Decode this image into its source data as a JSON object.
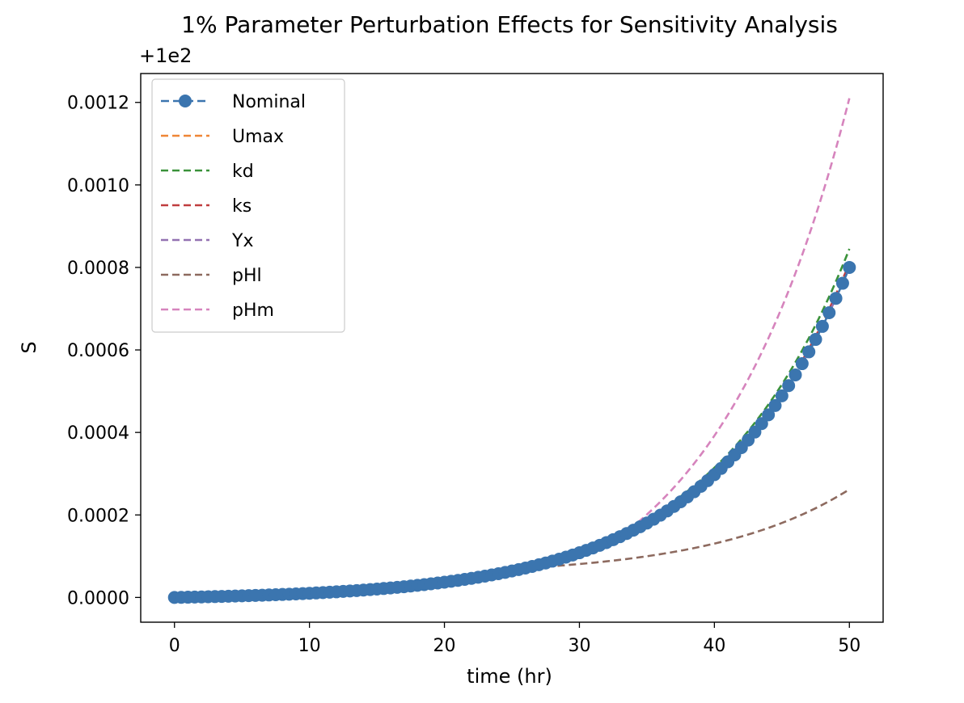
{
  "chart_data": {
    "type": "line",
    "title": "1% Parameter Perturbation Effects for Sensitivity Analysis",
    "offset_label": "+1e2",
    "xlabel": "time (hr)",
    "ylabel": "S",
    "xlim": [
      -2.5,
      52.5
    ],
    "ylim": [
      -6e-05,
      0.00127
    ],
    "xticks": [
      0,
      10,
      20,
      30,
      40,
      50
    ],
    "xtick_labels": [
      "0",
      "10",
      "20",
      "30",
      "40",
      "50"
    ],
    "yticks": [
      0,
      0.0002,
      0.0004,
      0.0006,
      0.0008,
      0.001,
      0.0012
    ],
    "ytick_labels": [
      "0.0000",
      "0.0002",
      "0.0004",
      "0.0006",
      "0.0008",
      "0.0010",
      "0.0012"
    ],
    "grid": false,
    "legend_position": "upper left",
    "series": [
      {
        "name": "Nominal",
        "color": "#3b75af",
        "style": "dashed-marker",
        "final_value": 0.0008,
        "knee": 0,
        "final_after_knee": 0.0008
      },
      {
        "name": "Umax",
        "color": "#ef8636",
        "style": "dashed",
        "final_value": 0.000805,
        "knee": 0,
        "final_after_knee": 0.000805
      },
      {
        "name": "kd",
        "color": "#3a923a",
        "style": "dashed",
        "final_value": 0.000845,
        "knee": 0,
        "final_after_knee": 0.000845
      },
      {
        "name": "ks",
        "color": "#c03d3e",
        "style": "dashed",
        "final_value": 0.00081,
        "knee": 0,
        "final_after_knee": 0.00081
      },
      {
        "name": "Yx",
        "color": "#9372b2",
        "style": "dashed",
        "final_value": 0.0008,
        "knee": 0,
        "final_after_knee": 0.0008
      },
      {
        "name": "pHl",
        "color": "#8d6a5f",
        "style": "dashed",
        "final_value": 0.0008,
        "knee": 26,
        "final_after_knee": 0.000262
      },
      {
        "name": "pHm",
        "color": "#d684bd",
        "style": "dashed",
        "final_value": 0.0008,
        "knee": 33,
        "final_after_knee": 0.00121
      }
    ]
  }
}
